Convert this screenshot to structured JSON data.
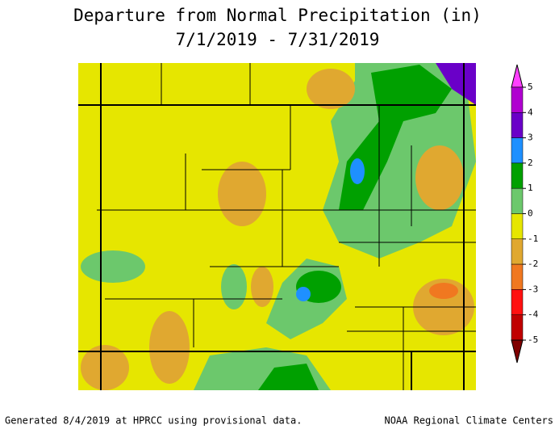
{
  "title": [
    "Departure from Normal Precipitation (in)",
    "7/1/2019 - 7/31/2019"
  ],
  "colorbar": {
    "top_color": "#ff40ff",
    "bottom_color": "#800000",
    "bands": [
      {
        "label": "5",
        "color": "#b000d0"
      },
      {
        "label": "4",
        "color": "#6a00c8"
      },
      {
        "label": "3",
        "color": "#1e90ff"
      },
      {
        "label": "2",
        "color": "#00a000"
      },
      {
        "label": "1",
        "color": "#6cc86c"
      },
      {
        "label": "0",
        "color": "#e6e600"
      },
      {
        "label": "-1",
        "color": "#e0a830"
      },
      {
        "label": "-2",
        "color": "#f07820"
      },
      {
        "label": "-3",
        "color": "#ff1010"
      },
      {
        "label": "-4",
        "color": "#c00000"
      },
      {
        "label": "-5",
        "color": "#800000"
      }
    ]
  },
  "footer": {
    "left": "Generated 8/4/2019 at HPRCC using provisional data.",
    "right": "NOAA Regional Climate Centers"
  }
}
